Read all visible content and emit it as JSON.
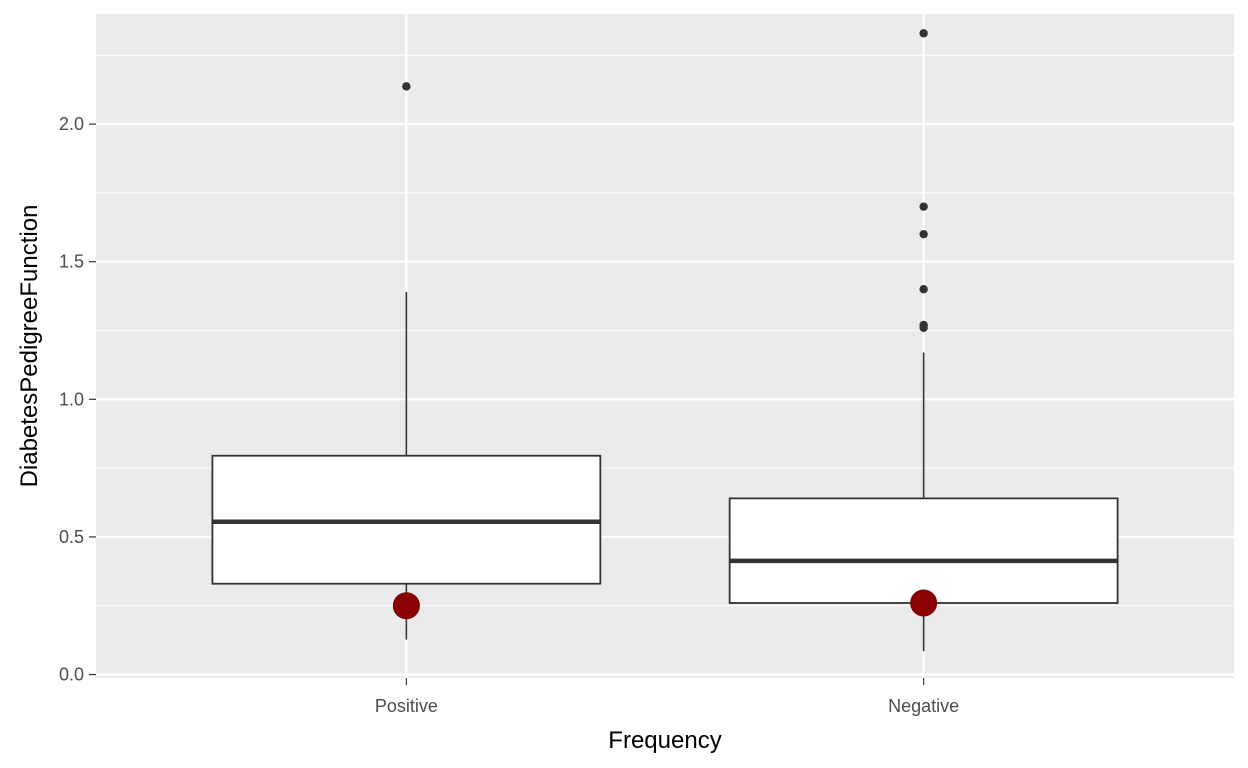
{
  "chart_data": {
    "type": "boxplot",
    "xlabel": "Frequency",
    "ylabel": "DiabetesPedigreeFunction",
    "ylim": [
      -0.0126,
      2.4
    ],
    "yticks": [
      0.0,
      0.5,
      1.0,
      1.5,
      2.0
    ],
    "ytick_labels": [
      "0.0",
      "0.5",
      "1.0",
      "1.5",
      "2.0"
    ],
    "grid": true,
    "legend": "none",
    "panel_color": "#ebebeb",
    "grid_color": "#ffffff",
    "box_fill": "#ffffff",
    "box_line": "#333333",
    "mean_point_color": "#8b0000",
    "categories": [
      "Positive",
      "Negative"
    ],
    "boxes": [
      {
        "category": "Positive",
        "whisker_low": 0.127,
        "q1": 0.33,
        "median": 0.555,
        "q3": 0.795,
        "whisker_high": 1.39,
        "outliers": [
          2.137
        ],
        "mean": 0.25
      },
      {
        "category": "Negative",
        "whisker_low": 0.085,
        "q1": 0.26,
        "median": 0.413,
        "q3": 0.64,
        "whisker_high": 1.17,
        "outliers": [
          2.33,
          1.7,
          1.6,
          1.4,
          1.27,
          1.26
        ],
        "mean": 0.26
      }
    ]
  }
}
